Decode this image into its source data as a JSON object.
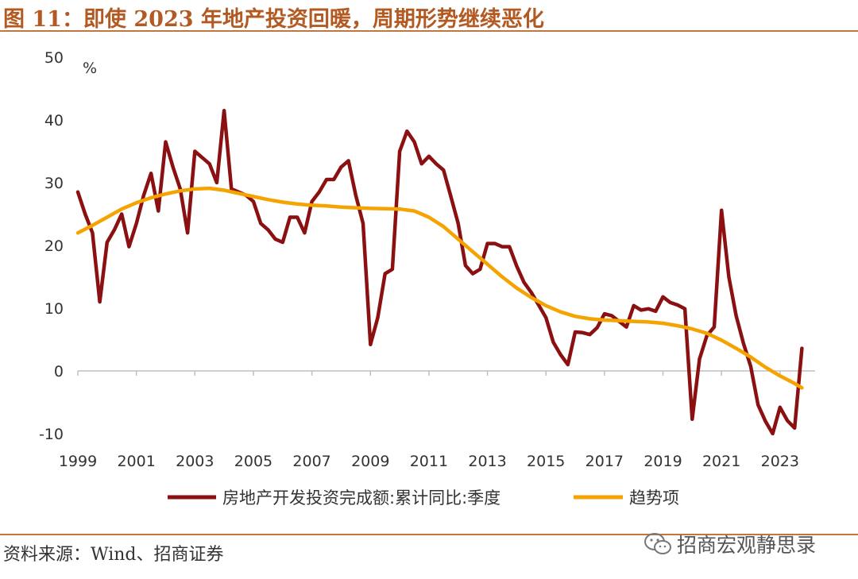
{
  "header": {
    "title": "图 11：即使 2023 年地产投资回暖，周期形势继续恶化"
  },
  "footer": {
    "source": "资料来源：Wind、招商证券",
    "watermark": "招商宏观静思录"
  },
  "colors": {
    "series": "#8b1012",
    "trend": "#f5a300",
    "accent": "#c0773f"
  },
  "chart_data": {
    "type": "line",
    "title": "",
    "ylabel": "%",
    "xlabel": "",
    "ylim": [
      -10,
      50
    ],
    "xlim": [
      1999.0,
      2024.2
    ],
    "yticks": [
      "50",
      "40",
      "30",
      "20",
      "10",
      "0",
      "-10"
    ],
    "xticks": [
      "1999",
      "2001",
      "2003",
      "2005",
      "2007",
      "2009",
      "2011",
      "2013",
      "2015",
      "2017",
      "2019",
      "2021",
      "2023"
    ],
    "legend_position": "bottom",
    "series": [
      {
        "name": "房地产开发投资完成额:累计同比:季度",
        "x": [
          1999.0,
          1999.25,
          1999.5,
          1999.75,
          2000.0,
          2000.25,
          2000.5,
          2000.75,
          2001.0,
          2001.25,
          2001.5,
          2001.75,
          2002.0,
          2002.25,
          2002.5,
          2002.75,
          2003.0,
          2003.25,
          2003.5,
          2003.75,
          2004.0,
          2004.25,
          2004.5,
          2004.75,
          2005.0,
          2005.25,
          2005.5,
          2005.75,
          2006.0,
          2006.25,
          2006.5,
          2006.75,
          2007.0,
          2007.25,
          2007.5,
          2007.75,
          2008.0,
          2008.25,
          2008.5,
          2008.75,
          2009.0,
          2009.25,
          2009.5,
          2009.75,
          2010.0,
          2010.25,
          2010.5,
          2010.75,
          2011.0,
          2011.25,
          2011.5,
          2011.75,
          2012.0,
          2012.25,
          2012.5,
          2012.75,
          2013.0,
          2013.25,
          2013.5,
          2013.75,
          2014.0,
          2014.25,
          2014.5,
          2014.75,
          2015.0,
          2015.25,
          2015.5,
          2015.75,
          2016.0,
          2016.25,
          2016.5,
          2016.75,
          2017.0,
          2017.25,
          2017.5,
          2017.75,
          2018.0,
          2018.25,
          2018.5,
          2018.75,
          2019.0,
          2019.25,
          2019.5,
          2019.75,
          2020.0,
          2020.25,
          2020.5,
          2020.75,
          2021.0,
          2021.25,
          2021.5,
          2021.75,
          2022.0,
          2022.25,
          2022.5,
          2022.75,
          2023.0,
          2023.25,
          2023.5,
          2023.75
        ],
        "values": [
          28.5,
          25.0,
          22.0,
          11.0,
          20.5,
          22.5,
          25.0,
          19.8,
          23.5,
          28.0,
          31.5,
          25.5,
          36.5,
          32.5,
          29.0,
          22.0,
          35.0,
          34.0,
          33.0,
          30.0,
          41.5,
          29.0,
          28.5,
          28.0,
          27.0,
          23.5,
          22.5,
          21.0,
          20.5,
          24.5,
          24.5,
          22.0,
          27.0,
          28.5,
          30.5,
          30.5,
          32.5,
          33.5,
          28.0,
          23.5,
          4.2,
          8.5,
          15.5,
          16.2,
          35.0,
          38.2,
          36.5,
          33.0,
          34.2,
          33.0,
          32.0,
          27.8,
          23.5,
          16.8,
          15.5,
          16.2,
          20.3,
          20.3,
          19.8,
          19.8,
          16.7,
          14.1,
          12.5,
          10.5,
          8.5,
          4.6,
          2.6,
          1.0,
          6.2,
          6.1,
          5.8,
          6.9,
          9.1,
          8.8,
          7.9,
          7.0,
          10.4,
          9.7,
          9.9,
          9.5,
          11.8,
          10.9,
          10.5,
          9.9,
          -7.7,
          1.9,
          5.6,
          7.0,
          25.6,
          15.0,
          8.8,
          4.4,
          0.7,
          -5.4,
          -8.0,
          -10.0,
          -5.8,
          -7.9,
          -9.1,
          3.6
        ]
      },
      {
        "name": "趋势项",
        "x": [
          1999.0,
          1999.5,
          2000.0,
          2000.5,
          2001.0,
          2001.5,
          2002.0,
          2002.5,
          2003.0,
          2003.5,
          2004.0,
          2004.5,
          2005.0,
          2005.5,
          2006.0,
          2006.5,
          2007.0,
          2007.5,
          2008.0,
          2008.5,
          2009.0,
          2009.5,
          2010.0,
          2010.5,
          2011.0,
          2011.5,
          2012.0,
          2012.5,
          2013.0,
          2013.5,
          2014.0,
          2014.5,
          2015.0,
          2015.5,
          2016.0,
          2016.5,
          2017.0,
          2017.5,
          2018.0,
          2018.5,
          2019.0,
          2019.5,
          2020.0,
          2020.5,
          2021.0,
          2021.5,
          2022.0,
          2022.5,
          2023.0,
          2023.5,
          2023.75
        ],
        "values": [
          22.0,
          23.2,
          24.5,
          25.8,
          26.8,
          27.6,
          28.2,
          28.7,
          29.0,
          29.1,
          28.8,
          28.3,
          27.8,
          27.3,
          26.9,
          26.6,
          26.4,
          26.3,
          26.1,
          26.0,
          25.9,
          25.85,
          25.8,
          25.5,
          24.5,
          23.0,
          21.0,
          19.0,
          17.0,
          15.0,
          13.2,
          11.7,
          10.4,
          9.4,
          8.7,
          8.3,
          8.1,
          8.0,
          7.9,
          7.8,
          7.6,
          7.2,
          6.7,
          6.0,
          4.9,
          3.6,
          2.2,
          0.6,
          -0.8,
          -2.0,
          -2.7
        ]
      }
    ]
  }
}
